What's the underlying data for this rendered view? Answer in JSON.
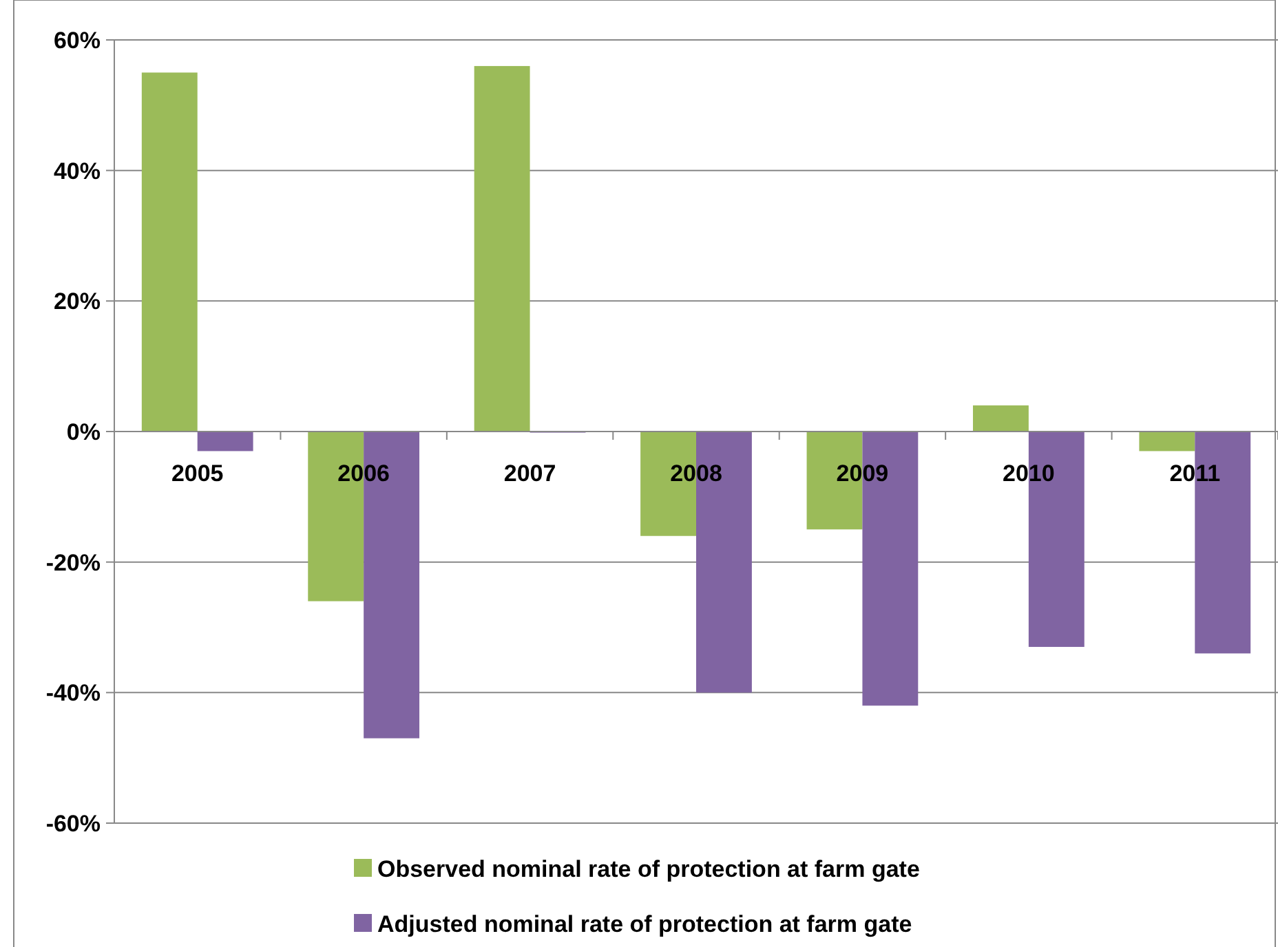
{
  "chart_data": {
    "type": "bar",
    "categories": [
      "2005",
      "2006",
      "2007",
      "2008",
      "2009",
      "2010",
      "2011"
    ],
    "series": [
      {
        "name": "Observed nominal rate of protection at farm gate",
        "color": "#9bbb59",
        "values": [
          55,
          -26,
          56,
          -16,
          -15,
          4,
          -3
        ]
      },
      {
        "name": "Adjusted nominal rate of protection at farm gate",
        "color": "#8064a2",
        "values": [
          -3,
          -47,
          0,
          -40,
          -42,
          -33,
          -34
        ]
      }
    ],
    "ylim": [
      -60,
      60
    ],
    "yticks": [
      {
        "value": -60,
        "label": "-60%"
      },
      {
        "value": -40,
        "label": "-40%"
      },
      {
        "value": -20,
        "label": "-20%"
      },
      {
        "value": 0,
        "label": "0%"
      },
      {
        "value": 20,
        "label": "20%"
      },
      {
        "value": 40,
        "label": "40%"
      },
      {
        "value": 60,
        "label": "60%"
      }
    ],
    "grid": "y",
    "legend": "bottom"
  }
}
